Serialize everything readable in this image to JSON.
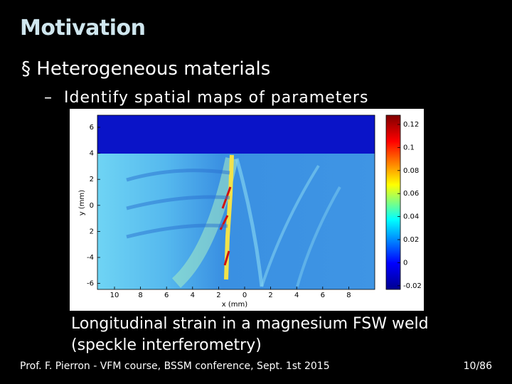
{
  "title": "Motivation",
  "bullets": [
    {
      "text": "Heterogeneous materials",
      "sub": [
        "Identify spatial maps of parameters"
      ]
    }
  ],
  "figure": {
    "xlabel": "x (mm)",
    "ylabel": "y (mm)",
    "xticks": [
      "10",
      "8",
      "6",
      "4",
      "2",
      "0",
      "2",
      "4",
      "6",
      "8"
    ],
    "yticks": [
      "6",
      "4",
      "2",
      "0",
      "2",
      "-4",
      "-6"
    ],
    "colorbar": [
      "0.12",
      "0.1",
      "0.08",
      "0.06",
      "0.04",
      "0.02",
      "0",
      "-0.02"
    ]
  },
  "caption": [
    "Longitudinal strain in a magnesium FSW weld",
    "(speckle interferometry)"
  ],
  "footer": "Prof. F. Pierron - VFM course, BSSM conference, Sept. 1st 2015",
  "page": "10/86"
}
